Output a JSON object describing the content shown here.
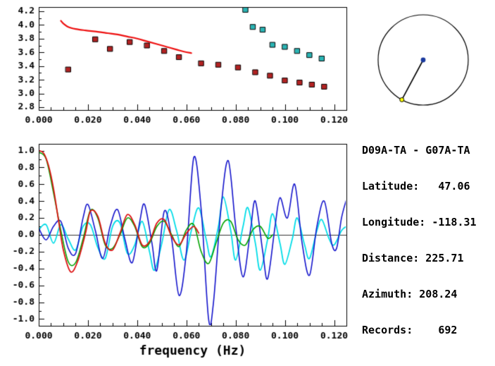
{
  "colors": {
    "background": "#ffffff",
    "axis": "#000000",
    "dispersion_curve": "#ee1111",
    "red_squares": "#b22222",
    "cyan_squares": "#2ab4b4",
    "wave_blue": "#1414cc",
    "wave_cyan": "#00dde8",
    "wave_green": "#00a300",
    "wave_red": "#dd1111",
    "compass_center_dot": "#1a3a9e",
    "compass_end_dot": "#ffff00"
  },
  "info_panel": {
    "station_pair": "D09A-TA - G07A-TA",
    "rows": [
      "Latitude:   47.06",
      "Longitude: -118.31",
      "Distance: 225.71",
      "Azimuth: 208.24",
      "Records:    692"
    ]
  },
  "chart_data": [
    {
      "id": "dispersion",
      "type": "scatter",
      "title": "",
      "xlabel": "",
      "ylabel": "",
      "xlim": [
        0,
        0.125
      ],
      "ylim": [
        2.76,
        4.26
      ],
      "x_ticks": [
        0,
        0.02,
        0.04,
        0.06,
        0.08,
        0.1,
        0.12
      ],
      "x_tick_labels": [
        "0.000",
        "0.020",
        "0.040",
        "0.060",
        "0.080",
        "0.100",
        "0.120"
      ],
      "y_ticks": [
        4.2,
        4.0,
        3.8,
        3.6,
        3.4,
        3.2,
        3.0,
        2.8
      ],
      "y_tick_labels": [
        "4.2",
        "4.0",
        "3.8",
        "3.6",
        "3.4",
        "3.2",
        "3.0",
        "2.8"
      ],
      "x_minor_step": 0.005,
      "y_minor_step": 0.1,
      "grid": false,
      "series": [
        {
          "name": "reference-dispersion-curve",
          "type": "line",
          "color": "#ee1111",
          "width": 2.2,
          "points": [
            [
              0.009,
              4.06
            ],
            [
              0.01,
              4.02
            ],
            [
              0.012,
              3.97
            ],
            [
              0.015,
              3.94
            ],
            [
              0.019,
              3.92
            ],
            [
              0.024,
              3.9
            ],
            [
              0.028,
              3.88
            ],
            [
              0.032,
              3.86
            ],
            [
              0.036,
              3.83
            ],
            [
              0.04,
              3.8
            ],
            [
              0.044,
              3.76
            ],
            [
              0.048,
              3.72
            ],
            [
              0.052,
              3.68
            ],
            [
              0.056,
              3.64
            ],
            [
              0.059,
              3.61
            ],
            [
              0.062,
              3.59
            ]
          ]
        },
        {
          "name": "measured-group-velocity-red",
          "type": "squares",
          "color": "#b22222",
          "points": [
            [
              0.012,
              3.35
            ],
            [
              0.023,
              3.79
            ],
            [
              0.029,
              3.65
            ],
            [
              0.037,
              3.75
            ],
            [
              0.044,
              3.7
            ],
            [
              0.051,
              3.62
            ],
            [
              0.057,
              3.53
            ],
            [
              0.066,
              3.44
            ],
            [
              0.073,
              3.42
            ],
            [
              0.081,
              3.38
            ],
            [
              0.088,
              3.31
            ],
            [
              0.094,
              3.26
            ],
            [
              0.1,
              3.19
            ],
            [
              0.106,
              3.16
            ],
            [
              0.111,
              3.13
            ],
            [
              0.116,
              3.1
            ]
          ]
        },
        {
          "name": "measured-phase-velocity-cyan",
          "type": "squares",
          "color": "#2ab4b4",
          "points": [
            [
              0.084,
              4.22
            ],
            [
              0.087,
              3.97
            ],
            [
              0.091,
              3.93
            ],
            [
              0.095,
              3.71
            ],
            [
              0.1,
              3.68
            ],
            [
              0.105,
              3.62
            ],
            [
              0.11,
              3.56
            ],
            [
              0.115,
              3.51
            ]
          ]
        }
      ]
    },
    {
      "id": "waveform",
      "type": "line",
      "title": "",
      "xlabel": "frequency (Hz)",
      "ylabel": "",
      "xlim": [
        0,
        0.125
      ],
      "ylim": [
        -1.08,
        1.08
      ],
      "x_ticks": [
        0,
        0.02,
        0.04,
        0.06,
        0.08,
        0.1,
        0.12
      ],
      "x_tick_labels": [
        "0.000",
        "0.020",
        "0.040",
        "0.060",
        "0.080",
        "0.100",
        "0.120"
      ],
      "y_ticks": [
        1.0,
        0.8,
        0.6,
        0.4,
        0.2,
        0.0,
        -0.2,
        -0.4,
        -0.6,
        -0.8,
        -1.0
      ],
      "y_tick_labels": [
        "1.0",
        "0.8",
        "0.6",
        "0.4",
        "0.2",
        "0.0",
        "-0.2",
        "-0.4",
        "-0.6",
        "-0.8",
        "-1.0"
      ],
      "x_minor_step": 0.005,
      "y_minor_step": 0.1,
      "zero_line": true,
      "grid": false,
      "series": [
        {
          "name": "coherence-cyan",
          "type": "line",
          "color": "#00dde8",
          "width": 1.8,
          "points": [
            [
              0.0,
              0.06
            ],
            [
              0.003,
              0.12
            ],
            [
              0.006,
              -0.1
            ],
            [
              0.009,
              0.12
            ],
            [
              0.012,
              -0.05
            ],
            [
              0.015,
              -0.18
            ],
            [
              0.018,
              0.1
            ],
            [
              0.021,
              0.12
            ],
            [
              0.024,
              -0.15
            ],
            [
              0.027,
              -0.28
            ],
            [
              0.03,
              0.1
            ],
            [
              0.033,
              0.14
            ],
            [
              0.036,
              -0.22
            ],
            [
              0.039,
              -0.12
            ],
            [
              0.042,
              0.16
            ],
            [
              0.045,
              -0.2
            ],
            [
              0.047,
              -0.42
            ],
            [
              0.05,
              -0.1
            ],
            [
              0.053,
              0.3
            ],
            [
              0.056,
              0.05
            ],
            [
              0.059,
              -0.3
            ],
            [
              0.062,
              0.05
            ],
            [
              0.065,
              0.32
            ],
            [
              0.068,
              -0.05
            ],
            [
              0.07,
              -0.26
            ],
            [
              0.073,
              0.1
            ],
            [
              0.075,
              0.45
            ],
            [
              0.078,
              0.05
            ],
            [
              0.08,
              -0.3
            ],
            [
              0.083,
              0.1
            ],
            [
              0.085,
              0.32
            ],
            [
              0.088,
              -0.1
            ],
            [
              0.09,
              -0.42
            ],
            [
              0.093,
              -0.05
            ],
            [
              0.095,
              0.25
            ],
            [
              0.098,
              -0.1
            ],
            [
              0.1,
              -0.35
            ],
            [
              0.103,
              -0.05
            ],
            [
              0.105,
              0.2
            ],
            [
              0.108,
              -0.12
            ],
            [
              0.11,
              -0.28
            ],
            [
              0.113,
              0.05
            ],
            [
              0.115,
              0.18
            ],
            [
              0.118,
              -0.05
            ],
            [
              0.12,
              -0.12
            ],
            [
              0.123,
              0.05
            ],
            [
              0.125,
              0.1
            ]
          ]
        },
        {
          "name": "cross-spectrum-blue",
          "type": "line",
          "color": "#1414cc",
          "width": 1.6,
          "points": [
            [
              0.0,
              0.08
            ],
            [
              0.003,
              -0.06
            ],
            [
              0.006,
              0.1
            ],
            [
              0.009,
              0.16
            ],
            [
              0.012,
              -0.16
            ],
            [
              0.015,
              -0.22
            ],
            [
              0.018,
              0.2
            ],
            [
              0.02,
              0.36
            ],
            [
              0.023,
              0.05
            ],
            [
              0.026,
              -0.28
            ],
            [
              0.029,
              0.1
            ],
            [
              0.032,
              0.3
            ],
            [
              0.035,
              -0.05
            ],
            [
              0.038,
              -0.33
            ],
            [
              0.041,
              0.15
            ],
            [
              0.043,
              0.36
            ],
            [
              0.046,
              -0.1
            ],
            [
              0.048,
              -0.42
            ],
            [
              0.051,
              0.28
            ],
            [
              0.054,
              -0.05
            ],
            [
              0.057,
              -0.72
            ],
            [
              0.06,
              -0.2
            ],
            [
              0.063,
              0.92
            ],
            [
              0.066,
              0.3
            ],
            [
              0.069,
              -1.0
            ],
            [
              0.071,
              -0.8
            ],
            [
              0.074,
              0.3
            ],
            [
              0.077,
              0.88
            ],
            [
              0.08,
              0.1
            ],
            [
              0.083,
              -0.5
            ],
            [
              0.086,
              0.05
            ],
            [
              0.088,
              0.4
            ],
            [
              0.091,
              -0.2
            ],
            [
              0.093,
              -0.52
            ],
            [
              0.096,
              0.1
            ],
            [
              0.098,
              0.44
            ],
            [
              0.101,
              0.2
            ],
            [
              0.104,
              0.6
            ],
            [
              0.107,
              -0.1
            ],
            [
              0.11,
              -0.48
            ],
            [
              0.113,
              0.1
            ],
            [
              0.116,
              0.4
            ],
            [
              0.119,
              -0.1
            ],
            [
              0.121,
              -0.16
            ],
            [
              0.123,
              0.2
            ],
            [
              0.125,
              0.42
            ]
          ]
        },
        {
          "name": "smoothed-spectrum-green",
          "type": "line",
          "color": "#00a300",
          "width": 1.6,
          "points": [
            [
              0.0,
              0.98
            ],
            [
              0.003,
              0.9
            ],
            [
              0.006,
              0.5
            ],
            [
              0.009,
              0.05
            ],
            [
              0.012,
              -0.32
            ],
            [
              0.015,
              -0.33
            ],
            [
              0.018,
              -0.05
            ],
            [
              0.021,
              0.29
            ],
            [
              0.024,
              0.2
            ],
            [
              0.027,
              -0.12
            ],
            [
              0.03,
              -0.16
            ],
            [
              0.033,
              0.0
            ],
            [
              0.036,
              0.2
            ],
            [
              0.039,
              0.1
            ],
            [
              0.042,
              -0.14
            ],
            [
              0.045,
              -0.1
            ],
            [
              0.048,
              0.1
            ],
            [
              0.051,
              0.16
            ],
            [
              0.054,
              0.0
            ],
            [
              0.057,
              -0.14
            ],
            [
              0.06,
              0.06
            ],
            [
              0.063,
              0.12
            ],
            [
              0.066,
              -0.2
            ],
            [
              0.069,
              -0.34
            ],
            [
              0.072,
              -0.1
            ],
            [
              0.075,
              0.14
            ],
            [
              0.078,
              0.16
            ],
            [
              0.081,
              -0.06
            ],
            [
              0.084,
              -0.12
            ],
            [
              0.087,
              0.06
            ],
            [
              0.09,
              0.1
            ],
            [
              0.093,
              -0.04
            ],
            [
              0.095,
              0.0
            ]
          ]
        },
        {
          "name": "model-spectrum-red",
          "type": "line",
          "color": "#dd1111",
          "width": 1.8,
          "points": [
            [
              0.0,
              1.0
            ],
            [
              0.002,
              0.97
            ],
            [
              0.004,
              0.82
            ],
            [
              0.006,
              0.55
            ],
            [
              0.008,
              0.18
            ],
            [
              0.01,
              -0.18
            ],
            [
              0.013,
              -0.44
            ],
            [
              0.016,
              -0.3
            ],
            [
              0.019,
              0.02
            ],
            [
              0.021,
              0.28
            ],
            [
              0.024,
              0.22
            ],
            [
              0.027,
              -0.1
            ],
            [
              0.03,
              -0.18
            ],
            [
              0.033,
              0.02
            ],
            [
              0.036,
              0.24
            ],
            [
              0.039,
              0.12
            ],
            [
              0.042,
              -0.12
            ],
            [
              0.045,
              -0.08
            ],
            [
              0.048,
              0.14
            ],
            [
              0.051,
              0.18
            ],
            [
              0.054,
              -0.02
            ],
            [
              0.057,
              -0.12
            ],
            [
              0.06,
              0.02
            ],
            [
              0.063,
              0.1
            ],
            [
              0.065,
              0.02
            ]
          ]
        }
      ]
    },
    {
      "id": "compass",
      "type": "azimuth-compass",
      "azimuth_deg": 208.24,
      "center_dot": "station-1-dot",
      "end_dot": "station-2-dot"
    }
  ]
}
